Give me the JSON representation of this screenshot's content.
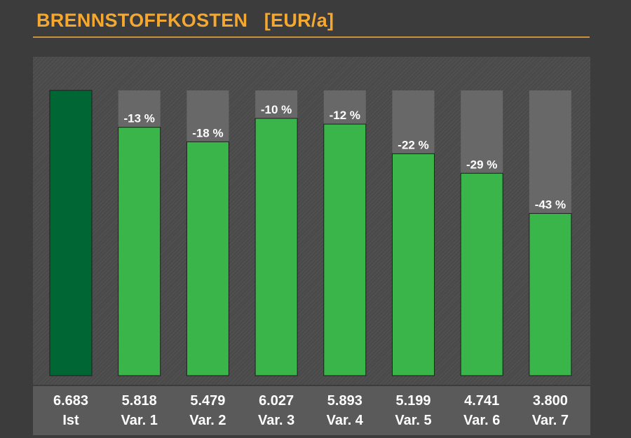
{
  "chart_data": {
    "type": "bar",
    "title": "BRENNSTOFFKOSTEN",
    "unit": "[EUR/a]",
    "categories": [
      "Ist",
      "Var. 1",
      "Var. 2",
      "Var. 3",
      "Var. 4",
      "Var. 5",
      "Var. 6",
      "Var. 7"
    ],
    "value_labels": [
      "6.683",
      "5.818",
      "5.479",
      "6.027",
      "5.893",
      "5.199",
      "4.741",
      "3.800"
    ],
    "values": [
      6683,
      5818,
      5479,
      6027,
      5893,
      5199,
      4741,
      3800
    ],
    "reference_value": 6683,
    "percent_labels": [
      "",
      "-13 %",
      "-18 %",
      "-10 %",
      "-12 %",
      "-22 %",
      "-29 %",
      "-43 %"
    ],
    "ylim": [
      0,
      6683
    ],
    "grid": false,
    "legend": "none",
    "colors": {
      "reference_bar": "#006633",
      "variant_bar": "#39b54a",
      "reference_gap": "#686868",
      "title": "#f4a830",
      "text": "#ffffff"
    }
  }
}
